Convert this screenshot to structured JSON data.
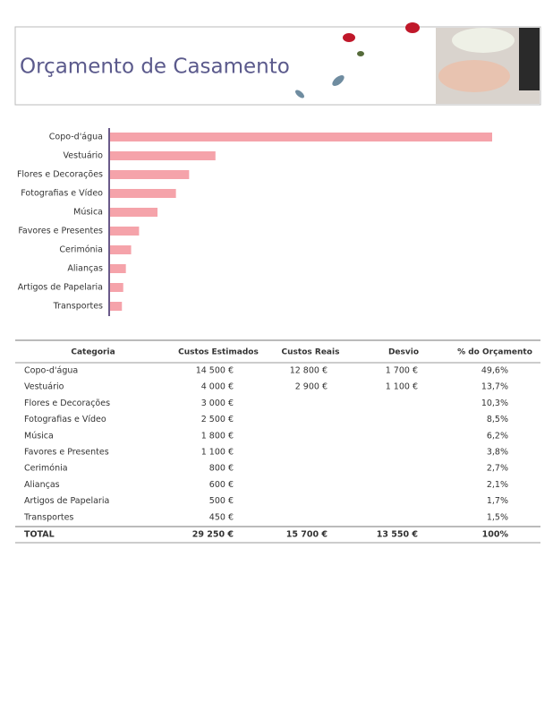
{
  "header": {
    "title": "Orçamento de Casamento"
  },
  "chart_data": {
    "type": "bar",
    "orientation": "horizontal",
    "color": "#f5a3aa",
    "categories": [
      "Copo-d'água",
      "Vestuário",
      "Flores e Decorações",
      "Fotografias e Vídeo",
      "Música",
      "Favores e Presentes",
      "Cerimónia",
      "Alianças",
      "Artigos de Papelaria",
      "Transportes"
    ],
    "values": [
      14500,
      4000,
      3000,
      2500,
      1800,
      1100,
      800,
      600,
      500,
      450
    ]
  },
  "table": {
    "header": [
      "Categoria",
      "Custos Estimados",
      "Custos Reais",
      "Desvio",
      "% do Orçamento"
    ],
    "rows": [
      [
        "Copo-d'água",
        "14 500 €",
        "12 800 €",
        "1 700 €",
        "49,6%"
      ],
      [
        "Vestuário",
        "4 000 €",
        "2 900 €",
        "1 100 €",
        "13,7%"
      ],
      [
        "Flores e Decorações",
        "3 000 €",
        null,
        null,
        "10,3%"
      ],
      [
        "Fotografias e Vídeo",
        "2 500 €",
        null,
        null,
        "8,5%"
      ],
      [
        "Música",
        "1 800 €",
        null,
        null,
        "6,2%"
      ],
      [
        "Favores e Presentes",
        "1 100 €",
        null,
        null,
        "3,8%"
      ],
      [
        "Cerimónia",
        "800 €",
        null,
        null,
        "2,7%"
      ],
      [
        "Alianças",
        "600 €",
        null,
        null,
        "2,1%"
      ],
      [
        "Artigos de Papelaria",
        "500 €",
        null,
        null,
        "1,7%"
      ],
      [
        "Transportes",
        "450 €",
        null,
        null,
        "1,5%"
      ]
    ],
    "total": [
      "TOTAL",
      "29 250 €",
      "15 700 €",
      "13 550 €",
      "100%"
    ]
  }
}
